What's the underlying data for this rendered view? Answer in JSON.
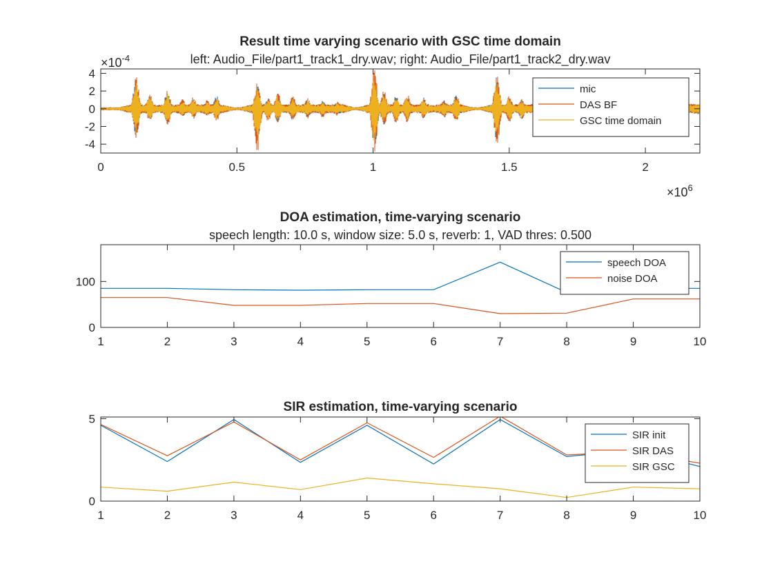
{
  "chart_data": [
    {
      "type": "line",
      "title": "Result time varying scenario with GSC time domain",
      "subtitle": "left: Audio_File/part1_track1_dry.wav; right: Audio_File/part1_track2_dry.wav",
      "xlabel": "",
      "ylabel": "",
      "xlim": [
        0,
        2200000
      ],
      "ylim": [
        -0.0005,
        0.00045
      ],
      "x_exponent_label": "×10",
      "x_exponent": "6",
      "y_exponent_label": "×10",
      "y_exponent": "-4",
      "xticks": [
        0,
        500000,
        1000000,
        1500000,
        2000000
      ],
      "xtick_labels": [
        "0",
        "0.5",
        "1",
        "1.5",
        "2"
      ],
      "yticks": [
        0.0004,
        0.0002,
        0,
        -0.0002,
        -0.0004
      ],
      "ytick_labels": [
        "4",
        "2",
        "0",
        "-2",
        "-4"
      ],
      "legend": {
        "location": "top-right",
        "entries": [
          "mic",
          "DAS BF",
          "GSC time domain"
        ]
      },
      "series": [
        {
          "name": "mic",
          "color": "#0072BD",
          "signal": "speech waveform, amplitude approx ±4.5e-4"
        },
        {
          "name": "DAS BF",
          "color": "#D95319",
          "signal": "speech waveform, amplitude approx ±5e-4"
        },
        {
          "name": "GSC time domain",
          "color": "#EDB120",
          "signal": "speech waveform, amplitude approx ±4e-4"
        }
      ],
      "bursts": [
        {
          "x": 130000,
          "peak": 0.00039,
          "trough": -0.00036
        },
        {
          "x": 180000,
          "peak": 0.00018,
          "trough": -0.00016
        },
        {
          "x": 245000,
          "peak": 0.00022,
          "trough": -0.0002
        },
        {
          "x": 300000,
          "peak": 0.00012,
          "trough": -0.0001
        },
        {
          "x": 340000,
          "peak": 0.00014,
          "trough": -0.00013
        },
        {
          "x": 390000,
          "peak": 0.0001,
          "trough": -9e-05
        },
        {
          "x": 425000,
          "peak": 0.00016,
          "trough": -0.00015
        },
        {
          "x": 575000,
          "peak": 0.0003,
          "trough": -0.00052
        },
        {
          "x": 615000,
          "peak": 0.00013,
          "trough": -0.00015
        },
        {
          "x": 650000,
          "peak": 0.00019,
          "trough": -0.00017
        },
        {
          "x": 705000,
          "peak": 0.00015,
          "trough": -0.00014
        },
        {
          "x": 760000,
          "peak": 0.00012,
          "trough": -0.00011
        },
        {
          "x": 815000,
          "peak": 0.0001,
          "trough": -0.0001
        },
        {
          "x": 868000,
          "peak": 8e-05,
          "trough": -8e-05
        },
        {
          "x": 1005000,
          "peak": 0.00048,
          "trough": -0.00052
        },
        {
          "x": 1040000,
          "peak": 0.00021,
          "trough": -0.0002
        },
        {
          "x": 1085000,
          "peak": 0.00016,
          "trough": -0.00018
        },
        {
          "x": 1125000,
          "peak": 0.00018,
          "trough": -0.00016
        },
        {
          "x": 1185000,
          "peak": 0.00014,
          "trough": -0.00012
        },
        {
          "x": 1260000,
          "peak": 0.0001,
          "trough": -0.00011
        },
        {
          "x": 1305000,
          "peak": 0.00017,
          "trough": -0.00015
        },
        {
          "x": 1455000,
          "peak": 0.00041,
          "trough": -0.00042
        },
        {
          "x": 1500000,
          "peak": 0.00016,
          "trough": -0.00017
        },
        {
          "x": 1545000,
          "peak": 0.00012,
          "trough": -0.00013
        },
        {
          "x": 1600000,
          "peak": 0.0001,
          "trough": -0.0001
        },
        {
          "x": 1885000,
          "peak": 2e-05,
          "trough": -0.00036
        },
        {
          "x": 1930000,
          "peak": 7e-05,
          "trough": -4e-05
        },
        {
          "x": 2150000,
          "peak": 8e-05,
          "trough": -4e-05
        },
        {
          "x": 2195000,
          "peak": 5e-05,
          "trough": -7e-05
        }
      ]
    },
    {
      "type": "line",
      "title": "DOA estimation, time-varying scenario",
      "subtitle": "speech length: 10.0 s, window size: 5.0 s, reverb: 1, VAD thres: 0.500",
      "xlabel": "",
      "ylabel": "",
      "xlim": [
        1,
        10
      ],
      "ylim": [
        0,
        180
      ],
      "xticks": [
        1,
        2,
        3,
        4,
        5,
        6,
        7,
        8,
        9,
        10
      ],
      "xtick_labels": [
        "1",
        "2",
        "3",
        "4",
        "5",
        "6",
        "7",
        "8",
        "9",
        "10"
      ],
      "yticks": [
        100,
        0
      ],
      "ytick_labels": [
        "100",
        "0"
      ],
      "legend": {
        "location": "top-right",
        "entries": [
          "speech DOA",
          "noise DOA"
        ]
      },
      "x": [
        1,
        2,
        3,
        4,
        5,
        6,
        7,
        8,
        9,
        10
      ],
      "series": [
        {
          "name": "speech DOA",
          "color": "#0072BD",
          "values": [
            85,
            85,
            82,
            81,
            82,
            82,
            142,
            76,
            85,
            85
          ]
        },
        {
          "name": "noise DOA",
          "color": "#D95319",
          "values": [
            65,
            65,
            48,
            48,
            52,
            52,
            30,
            31,
            62,
            62
          ]
        }
      ]
    },
    {
      "type": "line",
      "title": "SIR estimation, time-varying scenario",
      "subtitle": "",
      "xlabel": "",
      "ylabel": "",
      "xlim": [
        1,
        10
      ],
      "ylim": [
        0,
        5.1
      ],
      "xticks": [
        1,
        2,
        3,
        4,
        5,
        6,
        7,
        8,
        9,
        10
      ],
      "xtick_labels": [
        "1",
        "2",
        "3",
        "4",
        "5",
        "6",
        "7",
        "8",
        "9",
        "10"
      ],
      "yticks": [
        5,
        0
      ],
      "ytick_labels": [
        "5",
        "0"
      ],
      "legend": {
        "location": "top-right",
        "entries": [
          "SIR init",
          "SIR DAS",
          "SIR GSC"
        ]
      },
      "x": [
        1,
        2,
        3,
        4,
        5,
        6,
        7,
        8,
        9,
        10
      ],
      "series": [
        {
          "name": "SIR init",
          "color": "#0072BD",
          "values": [
            4.6,
            2.4,
            4.95,
            2.35,
            4.6,
            2.25,
            4.95,
            2.7,
            3.1,
            2.1
          ]
        },
        {
          "name": "SIR DAS",
          "color": "#D95319",
          "values": [
            4.65,
            2.75,
            4.8,
            2.5,
            4.75,
            2.65,
            5.15,
            2.8,
            3.0,
            2.3
          ]
        },
        {
          "name": "SIR GSC",
          "color": "#EDB120",
          "values": [
            0.85,
            0.6,
            1.15,
            0.7,
            1.4,
            1.05,
            0.75,
            0.22,
            0.85,
            0.75
          ]
        }
      ]
    }
  ]
}
